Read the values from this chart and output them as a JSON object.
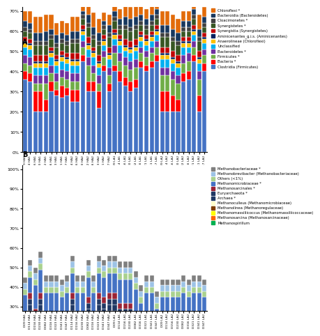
{
  "panel_A": {
    "title": "A",
    "ylabel_ticks": [
      "0%",
      "10%",
      "20%",
      "30%",
      "40%",
      "50%",
      "60%",
      "70%"
    ],
    "ylim": [
      0,
      0.72
    ],
    "categories": [
      "D09 HA1",
      "D114 HA1",
      "D156 HA1",
      "D230 HA1",
      "D082 HA1",
      "D316 HA1",
      "D323 HA1",
      "D341 HA1",
      "D347 HA1",
      "D114 HA2",
      "D156 HA2",
      "D230 HA2",
      "D082 HA2",
      "D316 HA2",
      "D323 HA2",
      "D341 HA2",
      "D347 HA2",
      "D09 LA1",
      "D114 LA1",
      "D156 LA1",
      "D230 LA1",
      "D082 LA1",
      "D316 LA1",
      "D321 LA1",
      "D341 LA1",
      "D347 LA1",
      "D09 LA2",
      "D114 LA2",
      "D156 LA2",
      "D230 LA2",
      "D082 LA2",
      "D316 LA2",
      "D321 LA2",
      "D341 LA2",
      "D347 LA2"
    ],
    "series": [
      {
        "label": "Clostridia (Firmicutes)",
        "color": "#4472C4",
        "values": [
          0.36,
          0.35,
          0.2,
          0.2,
          0.2,
          0.3,
          0.28,
          0.27,
          0.28,
          0.25,
          0.25,
          0.45,
          0.3,
          0.3,
          0.22,
          0.4,
          0.3,
          0.4,
          0.35,
          0.33,
          0.3,
          0.32,
          0.42,
          0.4,
          0.42,
          0.45,
          0.2,
          0.2,
          0.2,
          0.2,
          0.35,
          0.36,
          0.45,
          0.2,
          0.4
        ]
      },
      {
        "label": "Bacteria *",
        "color": "#FF0000",
        "values": [
          0.04,
          0.04,
          0.1,
          0.1,
          0.06,
          0.05,
          0.03,
          0.06,
          0.04,
          0.06,
          0.06,
          0.03,
          0.05,
          0.05,
          0.08,
          0.03,
          0.04,
          0.03,
          0.05,
          0.04,
          0.05,
          0.04,
          0.03,
          0.03,
          0.03,
          0.03,
          0.1,
          0.1,
          0.08,
          0.06,
          0.04,
          0.04,
          0.03,
          0.08,
          0.04
        ]
      },
      {
        "label": "Firmicutes *",
        "color": "#70AD47",
        "values": [
          0.04,
          0.04,
          0.04,
          0.04,
          0.08,
          0.04,
          0.04,
          0.04,
          0.04,
          0.04,
          0.04,
          0.04,
          0.08,
          0.04,
          0.04,
          0.04,
          0.04,
          0.06,
          0.05,
          0.06,
          0.06,
          0.06,
          0.04,
          0.04,
          0.04,
          0.04,
          0.08,
          0.08,
          0.08,
          0.08,
          0.05,
          0.05,
          0.04,
          0.08,
          0.04
        ]
      },
      {
        "label": "Bacteroidetes *",
        "color": "#7030A0",
        "values": [
          0.04,
          0.04,
          0.04,
          0.04,
          0.04,
          0.04,
          0.04,
          0.04,
          0.04,
          0.04,
          0.04,
          0.03,
          0.04,
          0.04,
          0.04,
          0.03,
          0.04,
          0.04,
          0.04,
          0.04,
          0.04,
          0.04,
          0.03,
          0.03,
          0.03,
          0.03,
          0.04,
          0.04,
          0.04,
          0.04,
          0.04,
          0.04,
          0.03,
          0.04,
          0.03
        ]
      },
      {
        "label": "Unclassified",
        "color": "#00B0F0",
        "values": [
          0.04,
          0.04,
          0.04,
          0.04,
          0.04,
          0.04,
          0.04,
          0.04,
          0.04,
          0.04,
          0.04,
          0.03,
          0.04,
          0.04,
          0.04,
          0.03,
          0.04,
          0.03,
          0.04,
          0.03,
          0.04,
          0.04,
          0.03,
          0.03,
          0.03,
          0.03,
          0.04,
          0.04,
          0.04,
          0.04,
          0.04,
          0.03,
          0.03,
          0.04,
          0.03
        ]
      },
      {
        "label": "Anaerolineae (Chloroflexi)",
        "color": "#FFC000",
        "values": [
          0.02,
          0.02,
          0.02,
          0.02,
          0.02,
          0.02,
          0.02,
          0.02,
          0.02,
          0.02,
          0.02,
          0.02,
          0.02,
          0.02,
          0.02,
          0.02,
          0.02,
          0.02,
          0.02,
          0.02,
          0.02,
          0.02,
          0.02,
          0.02,
          0.02,
          0.02,
          0.02,
          0.02,
          0.02,
          0.02,
          0.02,
          0.02,
          0.02,
          0.02,
          0.02
        ]
      },
      {
        "label": "Aminicenantes_g.i.s. (Aminicenantes)",
        "color": "#002060",
        "values": [
          0.01,
          0.01,
          0.01,
          0.01,
          0.01,
          0.01,
          0.01,
          0.01,
          0.01,
          0.01,
          0.01,
          0.01,
          0.01,
          0.01,
          0.01,
          0.01,
          0.01,
          0.01,
          0.01,
          0.01,
          0.01,
          0.01,
          0.01,
          0.01,
          0.01,
          0.01,
          0.01,
          0.01,
          0.01,
          0.01,
          0.01,
          0.01,
          0.01,
          0.01,
          0.01
        ]
      },
      {
        "label": "Synergistia (Synergistetes)",
        "color": "#C00000",
        "values": [
          0.02,
          0.02,
          0.03,
          0.03,
          0.03,
          0.02,
          0.02,
          0.02,
          0.02,
          0.03,
          0.03,
          0.02,
          0.03,
          0.02,
          0.03,
          0.02,
          0.03,
          0.02,
          0.02,
          0.03,
          0.03,
          0.03,
          0.02,
          0.02,
          0.02,
          0.02,
          0.03,
          0.03,
          0.03,
          0.03,
          0.02,
          0.02,
          0.02,
          0.03,
          0.02
        ]
      },
      {
        "label": "Synergistetes *",
        "color": "#375623",
        "values": [
          0.03,
          0.03,
          0.05,
          0.05,
          0.05,
          0.04,
          0.04,
          0.04,
          0.04,
          0.05,
          0.05,
          0.03,
          0.05,
          0.04,
          0.05,
          0.03,
          0.05,
          0.04,
          0.03,
          0.05,
          0.05,
          0.05,
          0.03,
          0.03,
          0.03,
          0.03,
          0.05,
          0.05,
          0.05,
          0.05,
          0.03,
          0.03,
          0.03,
          0.05,
          0.03
        ]
      },
      {
        "label": "Cloacimonetes *",
        "color": "#404040",
        "values": [
          0.02,
          0.02,
          0.02,
          0.02,
          0.02,
          0.02,
          0.02,
          0.02,
          0.02,
          0.02,
          0.02,
          0.02,
          0.02,
          0.02,
          0.02,
          0.02,
          0.02,
          0.02,
          0.02,
          0.02,
          0.02,
          0.02,
          0.02,
          0.02,
          0.02,
          0.02,
          0.02,
          0.02,
          0.02,
          0.02,
          0.02,
          0.02,
          0.02,
          0.02,
          0.02
        ]
      },
      {
        "label": "Bacteroidia (Bacteroidetes)",
        "color": "#17375E",
        "values": [
          0.03,
          0.03,
          0.04,
          0.04,
          0.05,
          0.03,
          0.04,
          0.03,
          0.03,
          0.04,
          0.04,
          0.02,
          0.04,
          0.04,
          0.04,
          0.02,
          0.04,
          0.03,
          0.03,
          0.04,
          0.04,
          0.04,
          0.03,
          0.03,
          0.03,
          0.03,
          0.04,
          0.04,
          0.04,
          0.04,
          0.03,
          0.03,
          0.03,
          0.04,
          0.03
        ]
      },
      {
        "label": "Chloroflexi *",
        "color": "#E26B0A",
        "values": [
          0.05,
          0.06,
          0.08,
          0.08,
          0.08,
          0.07,
          0.06,
          0.06,
          0.06,
          0.07,
          0.07,
          0.04,
          0.06,
          0.07,
          0.07,
          0.04,
          0.05,
          0.06,
          0.05,
          0.06,
          0.06,
          0.06,
          0.05,
          0.05,
          0.05,
          0.05,
          0.07,
          0.07,
          0.07,
          0.07,
          0.05,
          0.05,
          0.05,
          0.07,
          0.05
        ]
      }
    ]
  },
  "panel_B": {
    "title": "B",
    "ylabel_ticks": [
      "30%",
      "40%",
      "50%",
      "60%",
      "70%",
      "80%",
      "90%",
      "100%"
    ],
    "ylim": [
      0.28,
      1.02
    ],
    "categories": [
      "D09 HA1",
      "D114 HA1",
      "D156 HA1",
      "D230 HA1",
      "D082 HA1",
      "D316 HA1",
      "D323 HA1",
      "D341 HA1",
      "D347 HA1",
      "D114 HA2",
      "D156 HA2",
      "D230 HA2",
      "D082 HA2",
      "D316 HA2",
      "D323 HA2",
      "D341 HA2",
      "D347 HA2",
      "D09 LA1",
      "D114 LA1",
      "D156 LA1",
      "D230 LA1",
      "D082 LA1",
      "D316 LA1",
      "D321 LA1",
      "D341 LA1",
      "D347 LA1",
      "D09 LA2",
      "D114 LA2",
      "D156 LA2",
      "D230 LA2",
      "D082 LA2",
      "D316 LA2",
      "D321 LA2",
      "D341 LA2",
      "D347 LA2"
    ],
    "series": [
      {
        "label": "Methanospirillum",
        "color": "#00B050",
        "values": [
          0.08,
          0.1,
          0.12,
          0.1,
          0.08,
          0.1,
          0.1,
          0.08,
          0.1,
          0.1,
          0.1,
          0.1,
          0.08,
          0.1,
          0.1,
          0.08,
          0.1,
          0.2,
          0.15,
          0.15,
          0.15,
          0.1,
          0.05,
          0.1,
          0.1,
          0.02,
          0.08,
          0.08,
          0.08,
          0.08,
          0.1,
          0.08,
          0.1,
          0.1,
          0.08
        ]
      },
      {
        "label": "Methanosarcina (Methanosarcinaceae)",
        "color": "#FF6600",
        "values": [
          0.05,
          0.04,
          0.04,
          0.04,
          0.04,
          0.04,
          0.04,
          0.04,
          0.04,
          0.04,
          0.04,
          0.04,
          0.04,
          0.04,
          0.04,
          0.04,
          0.04,
          0.04,
          0.04,
          0.04,
          0.04,
          0.04,
          0.04,
          0.04,
          0.04,
          0.04,
          0.04,
          0.04,
          0.04,
          0.04,
          0.04,
          0.04,
          0.04,
          0.04,
          0.04
        ]
      },
      {
        "label": "Methanomassiliicoccus (Methanomassiliicoccaceae)",
        "color": "#FFFF00",
        "values": [
          0.0,
          0.1,
          0.0,
          0.1,
          0.0,
          0.0,
          0.0,
          0.0,
          0.0,
          0.1,
          0.0,
          0.0,
          0.1,
          0.0,
          0.1,
          0.1,
          0.1,
          0.0,
          0.0,
          0.0,
          0.0,
          0.0,
          0.0,
          0.0,
          0.0,
          0.0,
          0.0,
          0.0,
          0.0,
          0.0,
          0.0,
          0.0,
          0.0,
          0.0,
          0.0
        ]
      },
      {
        "label": "Methanolinea (Methanoregulaceae)",
        "color": "#7F3F00",
        "values": [
          0.02,
          0.02,
          0.02,
          0.02,
          0.02,
          0.02,
          0.02,
          0.02,
          0.02,
          0.02,
          0.02,
          0.02,
          0.02,
          0.02,
          0.02,
          0.02,
          0.02,
          0.02,
          0.02,
          0.02,
          0.02,
          0.02,
          0.02,
          0.02,
          0.02,
          0.02,
          0.02,
          0.02,
          0.02,
          0.02,
          0.02,
          0.02,
          0.02,
          0.02,
          0.02
        ]
      },
      {
        "label": "Methanoculleus (Methanomicrobiaceae)",
        "color": "#FFFFCC",
        "values": [
          0.02,
          0.02,
          0.02,
          0.02,
          0.02,
          0.02,
          0.02,
          0.02,
          0.02,
          0.02,
          0.02,
          0.02,
          0.02,
          0.02,
          0.02,
          0.02,
          0.02,
          0.02,
          0.02,
          0.02,
          0.02,
          0.02,
          0.02,
          0.02,
          0.02,
          0.02,
          0.02,
          0.02,
          0.02,
          0.02,
          0.02,
          0.02,
          0.02,
          0.02,
          0.02
        ]
      },
      {
        "label": "Archaea *",
        "color": "#1F3864",
        "values": [
          0.03,
          0.03,
          0.03,
          0.03,
          0.03,
          0.03,
          0.03,
          0.03,
          0.03,
          0.03,
          0.03,
          0.03,
          0.03,
          0.03,
          0.03,
          0.03,
          0.03,
          0.03,
          0.03,
          0.03,
          0.03,
          0.03,
          0.03,
          0.03,
          0.03,
          0.03,
          0.03,
          0.03,
          0.03,
          0.03,
          0.03,
          0.03,
          0.03,
          0.03,
          0.03
        ]
      },
      {
        "label": "Euryarchaeota *",
        "color": "#203864",
        "values": [
          0.03,
          0.03,
          0.03,
          0.03,
          0.03,
          0.03,
          0.03,
          0.03,
          0.03,
          0.03,
          0.03,
          0.03,
          0.03,
          0.03,
          0.03,
          0.03,
          0.03,
          0.03,
          0.03,
          0.03,
          0.03,
          0.03,
          0.03,
          0.03,
          0.03,
          0.03,
          0.03,
          0.03,
          0.03,
          0.03,
          0.03,
          0.03,
          0.03,
          0.03,
          0.03
        ]
      },
      {
        "label": "Methanosarcinales *",
        "color": "#9B2335",
        "values": [
          0.03,
          0.03,
          0.03,
          0.03,
          0.03,
          0.03,
          0.03,
          0.03,
          0.03,
          0.03,
          0.03,
          0.03,
          0.03,
          0.03,
          0.03,
          0.03,
          0.03,
          0.03,
          0.03,
          0.03,
          0.03,
          0.03,
          0.03,
          0.03,
          0.03,
          0.03,
          0.03,
          0.03,
          0.03,
          0.03,
          0.03,
          0.03,
          0.03,
          0.03,
          0.03
        ]
      },
      {
        "label": "Methanomicrobiaceae *",
        "color": "#4472C4",
        "values": [
          0.1,
          0.08,
          0.12,
          0.12,
          0.12,
          0.1,
          0.1,
          0.1,
          0.1,
          0.1,
          0.1,
          0.1,
          0.1,
          0.1,
          0.1,
          0.1,
          0.1,
          0.1,
          0.12,
          0.12,
          0.12,
          0.12,
          0.1,
          0.1,
          0.1,
          0.1,
          0.1,
          0.1,
          0.1,
          0.1,
          0.1,
          0.1,
          0.1,
          0.1,
          0.1
        ]
      },
      {
        "label": "Others (<1%)",
        "color": "#A9D18E",
        "values": [
          0.03,
          0.03,
          0.03,
          0.03,
          0.03,
          0.03,
          0.03,
          0.03,
          0.03,
          0.03,
          0.03,
          0.03,
          0.03,
          0.03,
          0.03,
          0.03,
          0.03,
          0.03,
          0.03,
          0.03,
          0.03,
          0.03,
          0.03,
          0.03,
          0.03,
          0.03,
          0.03,
          0.03,
          0.03,
          0.03,
          0.03,
          0.03,
          0.03,
          0.03,
          0.03
        ]
      },
      {
        "label": "Methanobrevibacter (Methanobacteriaceae)",
        "color": "#9DC3E6",
        "values": [
          0.03,
          0.03,
          0.03,
          0.03,
          0.03,
          0.03,
          0.03,
          0.03,
          0.03,
          0.03,
          0.03,
          0.03,
          0.03,
          0.03,
          0.03,
          0.03,
          0.03,
          0.03,
          0.03,
          0.03,
          0.03,
          0.03,
          0.03,
          0.03,
          0.03,
          0.03,
          0.03,
          0.03,
          0.03,
          0.03,
          0.03,
          0.03,
          0.03,
          0.03,
          0.03
        ]
      },
      {
        "label": "Methanobacteriaceae *",
        "color": "#7F7F7F",
        "values": [
          0.03,
          0.03,
          0.03,
          0.03,
          0.03,
          0.03,
          0.03,
          0.03,
          0.03,
          0.03,
          0.03,
          0.03,
          0.03,
          0.03,
          0.03,
          0.03,
          0.03,
          0.03,
          0.03,
          0.03,
          0.03,
          0.03,
          0.03,
          0.03,
          0.03,
          0.03,
          0.03,
          0.03,
          0.03,
          0.03,
          0.03,
          0.03,
          0.03,
          0.03,
          0.03
        ]
      }
    ]
  }
}
